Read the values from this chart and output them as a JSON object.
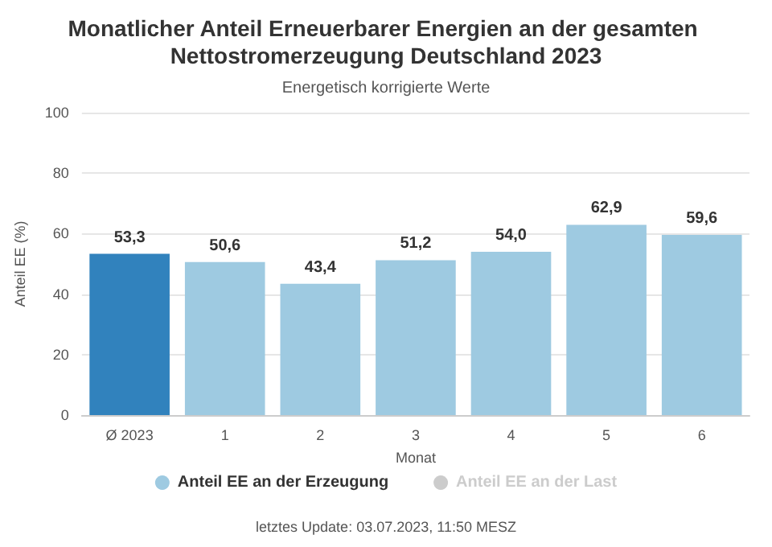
{
  "chart_data": {
    "type": "bar",
    "title": "Monatlicher Anteil Erneuerbarer Energien an der gesamten Nettostromerzeugung Deutschland 2023",
    "subtitle": "Energetisch korrigierte Werte",
    "xlabel": "Monat",
    "ylabel": "Anteil EE (%)",
    "categories": [
      "Ø 2023",
      "1",
      "2",
      "3",
      "4",
      "5",
      "6"
    ],
    "series": [
      {
        "name": "Anteil EE an der Erzeugung",
        "color": "#9ecae1",
        "colors": [
          "#3182bd",
          "#9ecae1",
          "#9ecae1",
          "#9ecae1",
          "#9ecae1",
          "#9ecae1",
          "#9ecae1"
        ],
        "values": [
          53.3,
          50.6,
          43.4,
          51.2,
          54.0,
          62.9,
          59.6
        ],
        "value_labels": [
          "53,3",
          "50,6",
          "43,4",
          "51,2",
          "54,0",
          "62,9",
          "59,6"
        ]
      },
      {
        "name": "Anteil EE an der Last",
        "color": "#cccccc",
        "values": [
          null,
          null,
          null,
          null,
          null,
          null,
          null
        ]
      }
    ],
    "ylim": [
      0,
      100
    ],
    "yticks": [
      0,
      20,
      40,
      60,
      80,
      100
    ],
    "grid": "y",
    "legend": "bottom",
    "annotations": [
      "letztes Update: 03.07.2023, 11:50 MESZ"
    ]
  }
}
